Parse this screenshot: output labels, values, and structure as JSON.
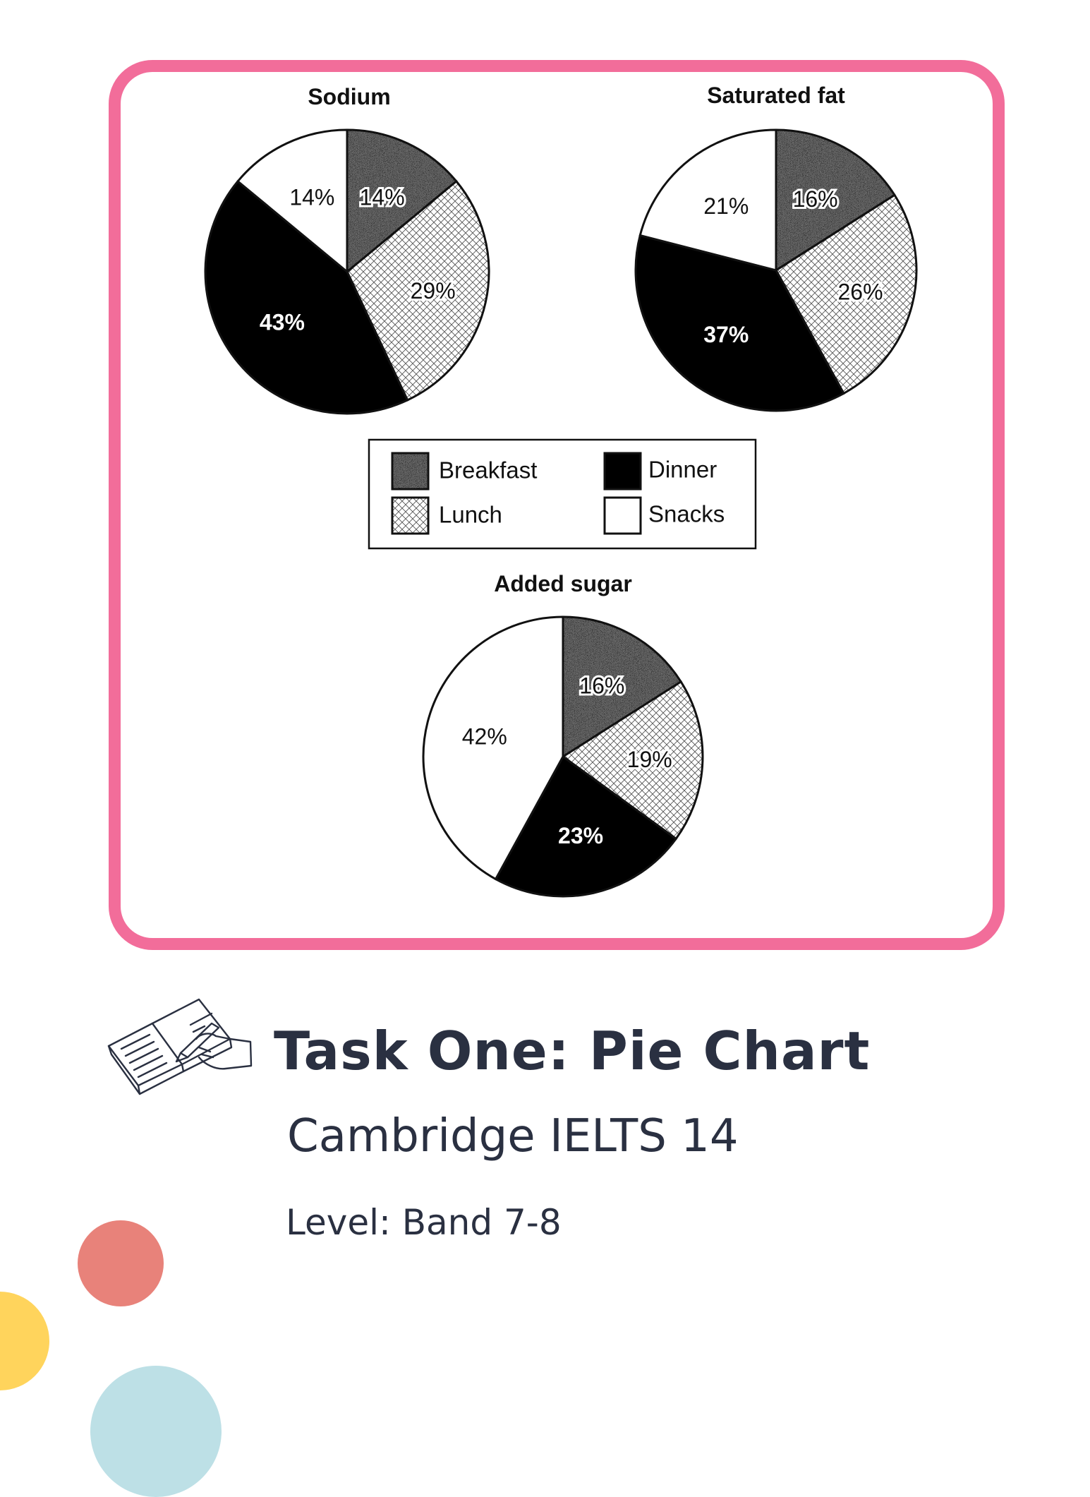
{
  "chart_data": [
    {
      "type": "pie",
      "title": "Sodium",
      "slices": [
        {
          "label": "Breakfast",
          "value": 14,
          "text": "14%"
        },
        {
          "label": "Lunch",
          "value": 29,
          "text": "29%"
        },
        {
          "label": "Dinner",
          "value": 43,
          "text": "43%"
        },
        {
          "label": "Snacks",
          "value": 14,
          "text": "14%"
        }
      ]
    },
    {
      "type": "pie",
      "title": "Saturated fat",
      "slices": [
        {
          "label": "Breakfast",
          "value": 16,
          "text": "16%"
        },
        {
          "label": "Lunch",
          "value": 26,
          "text": "26%"
        },
        {
          "label": "Dinner",
          "value": 37,
          "text": "37%"
        },
        {
          "label": "Snacks",
          "value": 21,
          "text": "21%"
        }
      ]
    },
    {
      "type": "pie",
      "title": "Added sugar",
      "slices": [
        {
          "label": "Breakfast",
          "value": 16,
          "text": "16%"
        },
        {
          "label": "Lunch",
          "value": 19,
          "text": "19%"
        },
        {
          "label": "Dinner",
          "value": 23,
          "text": "23%"
        },
        {
          "label": "Snacks",
          "value": 42,
          "text": "42%"
        }
      ]
    }
  ],
  "legend": {
    "entries": [
      {
        "name": "Breakfast",
        "style": "speckled"
      },
      {
        "name": "Dinner",
        "style": "solid-black"
      },
      {
        "name": "Lunch",
        "style": "crosshatch"
      },
      {
        "name": "Snacks",
        "style": "white"
      }
    ]
  },
  "caption": {
    "title": "Task One:  Pie Chart",
    "subtitle": "Cambridge IELTS 14",
    "level": "Level: Band 7-8"
  },
  "colors": {
    "frame": "#f26d9a",
    "text": "#2a3041",
    "dot_red": "#e8827a",
    "dot_yellow": "#ffd45c",
    "dot_blue": "#bde0e6"
  },
  "icons": {
    "header_icon": "writing-book-icon"
  }
}
